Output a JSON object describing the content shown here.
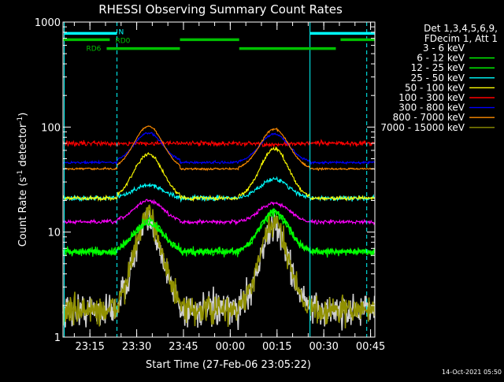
{
  "chart_data": {
    "type": "line",
    "title": "RHESSI Observing Summary Count Rates",
    "xlabel": "Start Time (27-Feb-06 23:05:22)",
    "ylabel_main": "Count Rate (s",
    "ylabel_sup1": "-1",
    "ylabel_mid": " detector",
    "ylabel_sup2": "-1",
    "ylabel_end": ")",
    "x_unit": "minutes since 23:05:22",
    "xlim": [
      0,
      100
    ],
    "ylim": [
      1,
      1000
    ],
    "y_scale": "log",
    "x_ticks": [
      {
        "value": 8.63,
        "label": "23:15"
      },
      {
        "value": 23.63,
        "label": "23:30"
      },
      {
        "value": 38.63,
        "label": "23:45"
      },
      {
        "value": 53.63,
        "label": "00:00"
      },
      {
        "value": 68.63,
        "label": "00:15"
      },
      {
        "value": 83.63,
        "label": "00:30"
      },
      {
        "value": 98.63,
        "label": "00:45"
      }
    ],
    "y_ticks": [
      {
        "value": 1,
        "label": "1"
      },
      {
        "value": 10,
        "label": "10"
      },
      {
        "value": 100,
        "label": "100"
      },
      {
        "value": 1000,
        "label": "1000"
      }
    ],
    "legend_header": [
      "Det 1,3,4,5,6,9,",
      "FDecim 1, Att 1"
    ],
    "legend_position": "right",
    "night_markers": {
      "solid": [
        0.4,
        79.2
      ],
      "dashed": [
        17.3,
        97.4
      ]
    },
    "flags": [
      {
        "name": "N",
        "y": 780,
        "color": "#00ffff",
        "segments": [
          [
            0.4,
            17.3
          ],
          [
            79.2,
            100
          ]
        ]
      },
      {
        "name": "RD0",
        "y": 680,
        "color": "#00c000",
        "segments": [
          [
            0,
            15
          ],
          [
            37.5,
            56.5
          ],
          [
            89,
            100
          ]
        ]
      },
      {
        "name": "RD6",
        "y": 560,
        "color": "#00c000",
        "segments": [
          [
            14,
            37.5
          ],
          [
            56.5,
            87.5
          ]
        ]
      }
    ],
    "series": [
      {
        "name": "3 - 6 keV",
        "color": "#d0d0d0",
        "legend_color": "#000000",
        "base": 1.8,
        "peaks": [
          12,
          11
        ],
        "noise": 0.35
      },
      {
        "name": "6 - 12 keV",
        "color": "#00ff00",
        "base": 6.5,
        "peaks": [
          13,
          15
        ],
        "noise": 0.09
      },
      {
        "name": "12 - 25 keV",
        "color": "#00ff00",
        "base": 6.5,
        "peaks": [
          12,
          16
        ],
        "noise": 0.05
      },
      {
        "name": "25 - 50 keV",
        "color": "#00ffff",
        "base": 21,
        "peaks": [
          28,
          32
        ],
        "noise": 0.05
      },
      {
        "name": "50 - 100 keV",
        "color": "#ffff00",
        "base": 21,
        "peaks": [
          55,
          62
        ],
        "noise": 0.04
      },
      {
        "name": "100 - 300 keV",
        "color": "#ff0000",
        "base": 70,
        "peaks": [
          70,
          68
        ],
        "noise": 0.05
      },
      {
        "name": "300 - 800 keV",
        "color": "#0000ff",
        "base": 46,
        "peaks": [
          88,
          86
        ],
        "noise": 0.025
      },
      {
        "name": "800 - 7000 keV",
        "color": "#ff8c00",
        "base": 40,
        "peaks": [
          102,
          96
        ],
        "noise": 0.02
      },
      {
        "name": "7000 - 15000 keV",
        "color": "#909000",
        "base": 1.8,
        "peaks": [
          14,
          12
        ],
        "noise": 0.3
      },
      {
        "name": "",
        "color": "#ff00ff",
        "base": 12.5,
        "peaks": [
          20,
          19
        ],
        "noise": 0.04
      }
    ],
    "timestamp": "14-Oct-2021 05:50"
  }
}
